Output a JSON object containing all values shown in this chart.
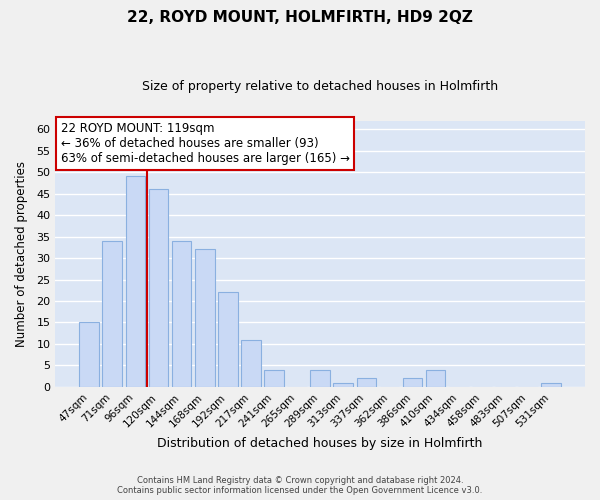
{
  "title": "22, ROYD MOUNT, HOLMFIRTH, HD9 2QZ",
  "subtitle": "Size of property relative to detached houses in Holmfirth",
  "xlabel": "Distribution of detached houses by size in Holmfirth",
  "ylabel": "Number of detached properties",
  "bar_labels": [
    "47sqm",
    "71sqm",
    "96sqm",
    "120sqm",
    "144sqm",
    "168sqm",
    "192sqm",
    "217sqm",
    "241sqm",
    "265sqm",
    "289sqm",
    "313sqm",
    "337sqm",
    "362sqm",
    "386sqm",
    "410sqm",
    "434sqm",
    "458sqm",
    "483sqm",
    "507sqm",
    "531sqm"
  ],
  "bar_heights": [
    15,
    34,
    49,
    46,
    34,
    32,
    22,
    11,
    4,
    0,
    4,
    1,
    2,
    0,
    2,
    4,
    0,
    0,
    0,
    0,
    1
  ],
  "bar_color": "#c9d9f5",
  "bar_edge_color": "#8ab0e0",
  "grid_color": "#ffffff",
  "bg_color": "#dce6f5",
  "fig_bg_color": "#f0f0f0",
  "vline_color": "#cc0000",
  "vline_x_index": 2.5,
  "annotation_title": "22 ROYD MOUNT: 119sqm",
  "annotation_line1": "← 36% of detached houses are smaller (93)",
  "annotation_line2": "63% of semi-detached houses are larger (165) →",
  "annotation_box_color": "#ffffff",
  "annotation_box_edge": "#cc0000",
  "ylim": [
    0,
    62
  ],
  "yticks": [
    0,
    5,
    10,
    15,
    20,
    25,
    30,
    35,
    40,
    45,
    50,
    55,
    60
  ],
  "footer_line1": "Contains HM Land Registry data © Crown copyright and database right 2024.",
  "footer_line2": "Contains public sector information licensed under the Open Government Licence v3.0."
}
